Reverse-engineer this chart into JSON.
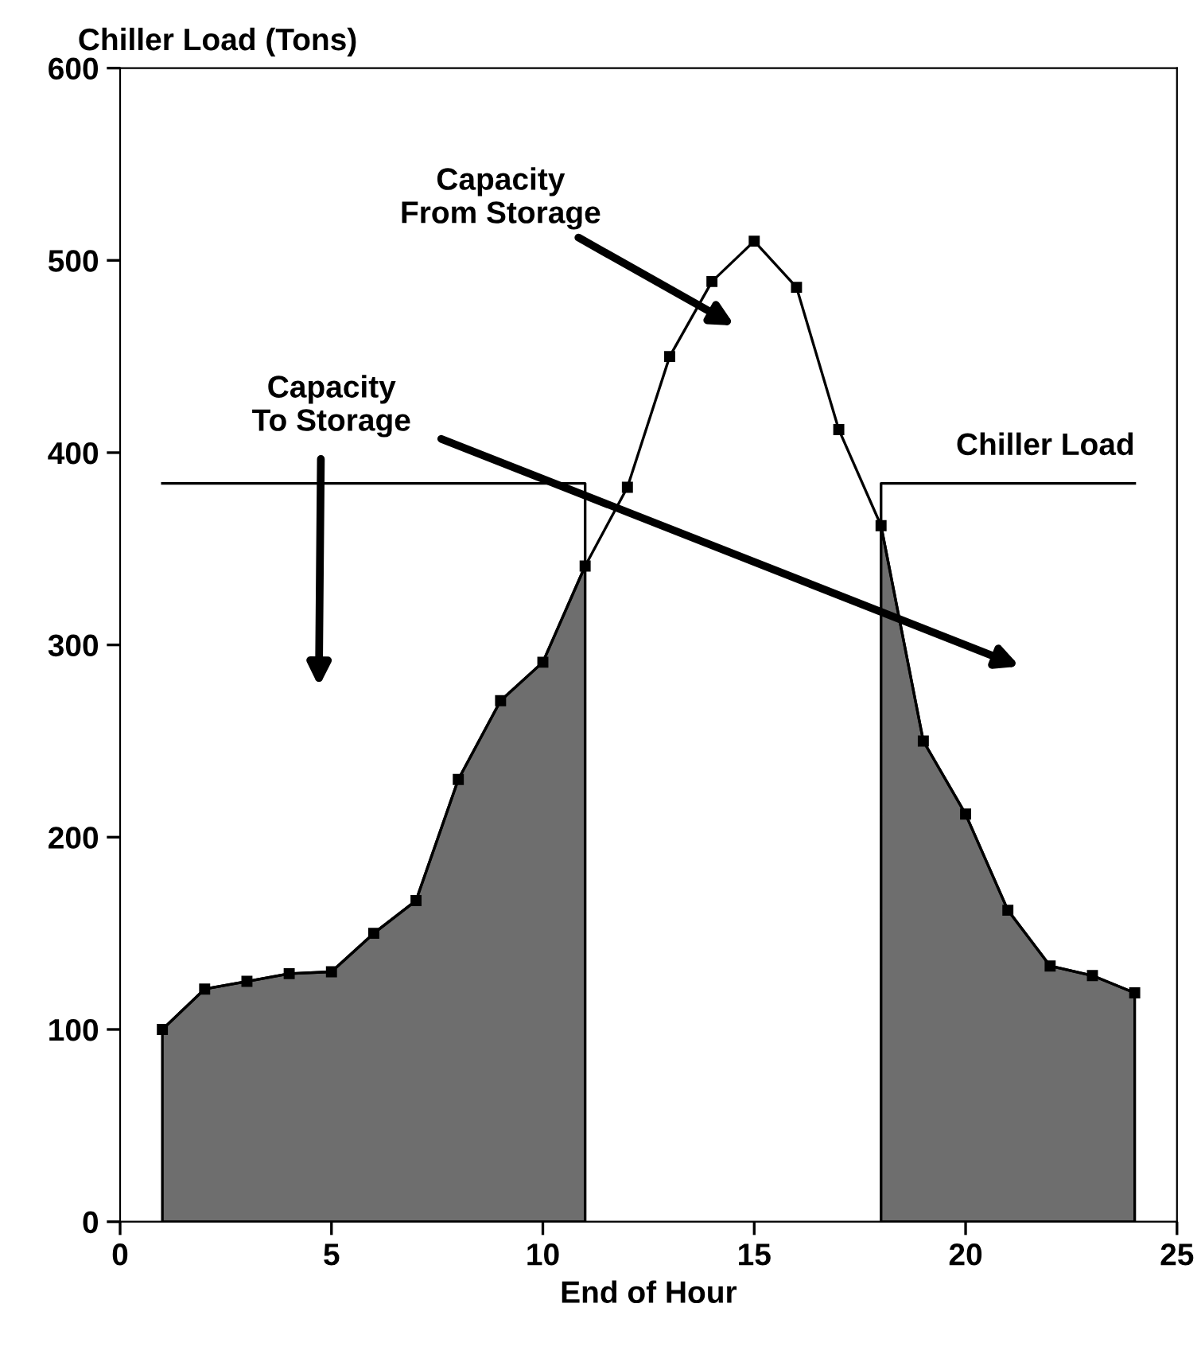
{
  "chart_data": {
    "type": "line",
    "ylabel": "Chiller Load (Tons)",
    "xlabel": "End of Hour",
    "xlim": [
      0,
      25
    ],
    "xticks": [
      0,
      5,
      10,
      15,
      20,
      25
    ],
    "ylim": [
      0,
      600
    ],
    "yticks": [
      0,
      100,
      200,
      300,
      400,
      500,
      600
    ],
    "grid": false,
    "legend": false,
    "series": [
      {
        "type": "area",
        "color": "#6e6e6e",
        "x": [
          1,
          2,
          3,
          4,
          5,
          6,
          7,
          8,
          9,
          10,
          11,
          12,
          13,
          14,
          15,
          16,
          17,
          18,
          19,
          20,
          21,
          22,
          23,
          24
        ],
        "values": [
          100,
          121,
          125,
          129,
          130,
          150,
          167,
          230,
          271,
          291,
          341,
          null,
          null,
          null,
          null,
          null,
          null,
          362,
          250,
          212,
          162,
          133,
          128,
          119
        ]
      },
      {
        "color": "#000000",
        "marker": "square",
        "x": [
          1,
          2,
          3,
          4,
          5,
          6,
          7,
          8,
          9,
          10,
          11,
          12,
          13,
          14,
          15,
          16,
          17,
          18,
          19,
          20,
          21,
          22,
          23,
          24
        ],
        "values": [
          100,
          121,
          125,
          129,
          130,
          150,
          167,
          230,
          271,
          291,
          341,
          382,
          450,
          489,
          510,
          486,
          412,
          362,
          250,
          212,
          162,
          133,
          128,
          119
        ]
      },
      {
        "name": "Chiller Load",
        "color": "#000000",
        "marker": "none",
        "x": [
          1,
          11,
          11,
          14,
          18,
          18,
          24
        ],
        "values": [
          384,
          384,
          341,
          null,
          362,
          384,
          384
        ]
      }
    ],
    "annotations": [
      "Capacity\nFrom Storage",
      "Capacity\nTo Storage"
    ]
  }
}
